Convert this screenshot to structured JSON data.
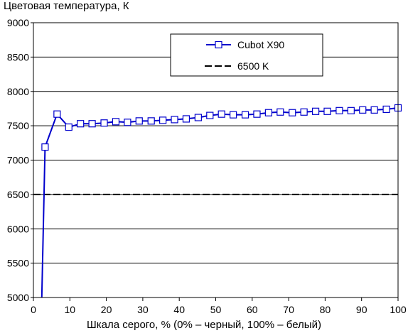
{
  "chart_data": {
    "type": "line",
    "title": "Цветовая температура, К",
    "xlabel": "Шкала серого, % (0% – черный, 100% – белый)",
    "ylabel": "",
    "xlim": [
      0,
      100
    ],
    "ylim": [
      5000,
      9000
    ],
    "xticks": [
      0,
      10,
      20,
      30,
      40,
      50,
      60,
      70,
      80,
      90,
      100
    ],
    "yticks": [
      5000,
      5500,
      6000,
      6500,
      7000,
      7500,
      8000,
      8500,
      9000
    ],
    "grid": "horizontal",
    "legend_position": "top-right",
    "series": [
      {
        "name": "Cubot X90",
        "color": "#0000cc",
        "marker": "square",
        "x": [
          2.3,
          3.2,
          6.5,
          9.7,
          12.9,
          16.1,
          19.4,
          22.6,
          25.8,
          29.0,
          32.3,
          35.5,
          38.7,
          41.9,
          45.2,
          48.4,
          51.6,
          54.8,
          58.1,
          61.3,
          64.5,
          67.7,
          71.0,
          74.2,
          77.4,
          80.6,
          83.9,
          87.1,
          90.3,
          93.5,
          96.8,
          100.0
        ],
        "y": [
          5000,
          7190,
          7670,
          7480,
          7530,
          7530,
          7540,
          7560,
          7550,
          7570,
          7570,
          7580,
          7590,
          7600,
          7620,
          7650,
          7670,
          7660,
          7660,
          7670,
          7690,
          7700,
          7690,
          7700,
          7710,
          7710,
          7720,
          7720,
          7730,
          7730,
          7740,
          7760
        ]
      },
      {
        "name": "6500 K",
        "color": "#000000",
        "style": "dashed",
        "x": [
          0,
          100
        ],
        "y": [
          6500,
          6500
        ]
      }
    ]
  }
}
